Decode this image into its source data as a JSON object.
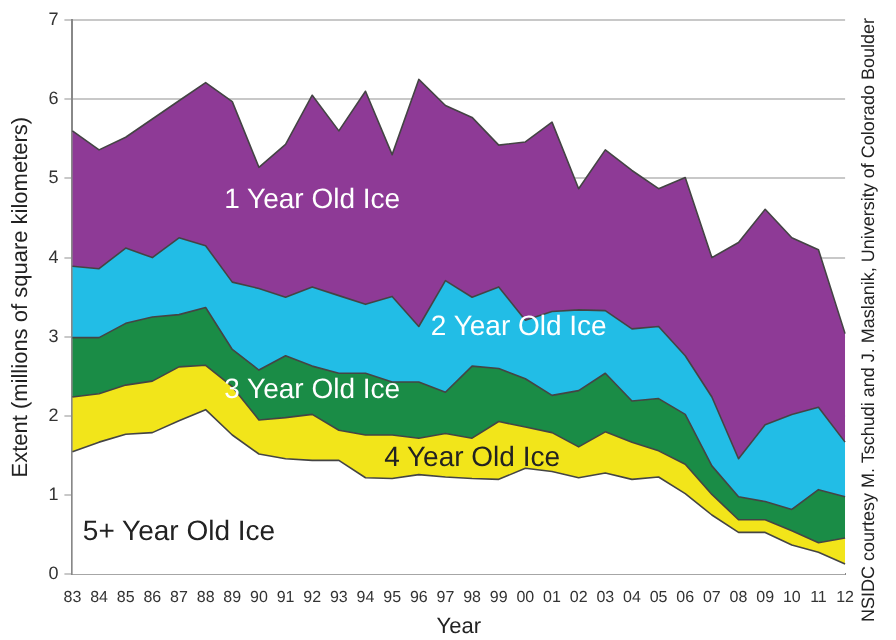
{
  "chart_data": {
    "type": "area",
    "stacked": true,
    "xlabel": "Year",
    "ylabel": "Extent (millions of square kilometers)",
    "categories": [
      "83",
      "84",
      "85",
      "86",
      "87",
      "88",
      "89",
      "90",
      "91",
      "92",
      "93",
      "94",
      "95",
      "96",
      "97",
      "98",
      "99",
      "00",
      "01",
      "02",
      "03",
      "04",
      "05",
      "06",
      "07",
      "08",
      "09",
      "10",
      "11",
      "12"
    ],
    "series": [
      {
        "name": "5+ Year Old Ice",
        "color": "#ffffff",
        "values": [
          1.55,
          1.67,
          1.77,
          1.79,
          1.94,
          2.08,
          1.76,
          1.52,
          1.46,
          1.44,
          1.44,
          1.22,
          1.21,
          1.26,
          1.23,
          1.21,
          1.2,
          1.34,
          1.3,
          1.22,
          1.28,
          1.2,
          1.23,
          1.02,
          0.75,
          0.53,
          0.53,
          0.37,
          0.28,
          0.13
        ]
      },
      {
        "name": "4 Year Old Ice",
        "color": "#f2e51a",
        "values": [
          0.69,
          0.61,
          0.62,
          0.65,
          0.68,
          0.56,
          0.61,
          0.43,
          0.52,
          0.58,
          0.38,
          0.54,
          0.55,
          0.46,
          0.55,
          0.51,
          0.73,
          0.52,
          0.49,
          0.39,
          0.52,
          0.47,
          0.33,
          0.37,
          0.26,
          0.16,
          0.16,
          0.18,
          0.12,
          0.33
        ]
      },
      {
        "name": "3 Year Old Ice",
        "color": "#1a8c46",
        "values": [
          0.75,
          0.71,
          0.78,
          0.81,
          0.66,
          0.73,
          0.47,
          0.63,
          0.78,
          0.61,
          0.72,
          0.78,
          0.67,
          0.71,
          0.52,
          0.91,
          0.67,
          0.61,
          0.47,
          0.71,
          0.74,
          0.52,
          0.66,
          0.63,
          0.36,
          0.29,
          0.23,
          0.27,
          0.67,
          0.52
        ]
      },
      {
        "name": "2 Year Old Ice",
        "color": "#22bde6",
        "values": [
          0.9,
          0.87,
          0.95,
          0.75,
          0.97,
          0.78,
          0.85,
          1.03,
          0.74,
          1.0,
          0.98,
          0.87,
          1.08,
          0.7,
          1.41,
          0.87,
          1.03,
          0.74,
          1.06,
          1.02,
          0.79,
          0.91,
          0.91,
          0.74,
          0.87,
          0.48,
          0.97,
          1.2,
          1.04,
          0.69
        ]
      },
      {
        "name": "1 Year Old Ice",
        "color": "#8e3a96",
        "values": [
          1.71,
          1.5,
          1.4,
          1.75,
          1.73,
          2.06,
          2.28,
          1.53,
          1.93,
          2.42,
          2.08,
          2.69,
          1.79,
          3.12,
          2.21,
          2.27,
          1.79,
          2.25,
          2.39,
          1.53,
          2.03,
          2.0,
          1.74,
          2.25,
          1.76,
          2.73,
          2.72,
          2.23,
          1.99,
          1.37
        ]
      }
    ],
    "ylim": [
      0,
      7
    ],
    "yticks": [
      0,
      1,
      2,
      3,
      4,
      5,
      6,
      7
    ],
    "grid": "y",
    "legend": false,
    "marker": "none",
    "annotations": [
      "NSIDC courtesy M. Tschudi and J. Maslanik, University of Colorado Boulder"
    ]
  }
}
